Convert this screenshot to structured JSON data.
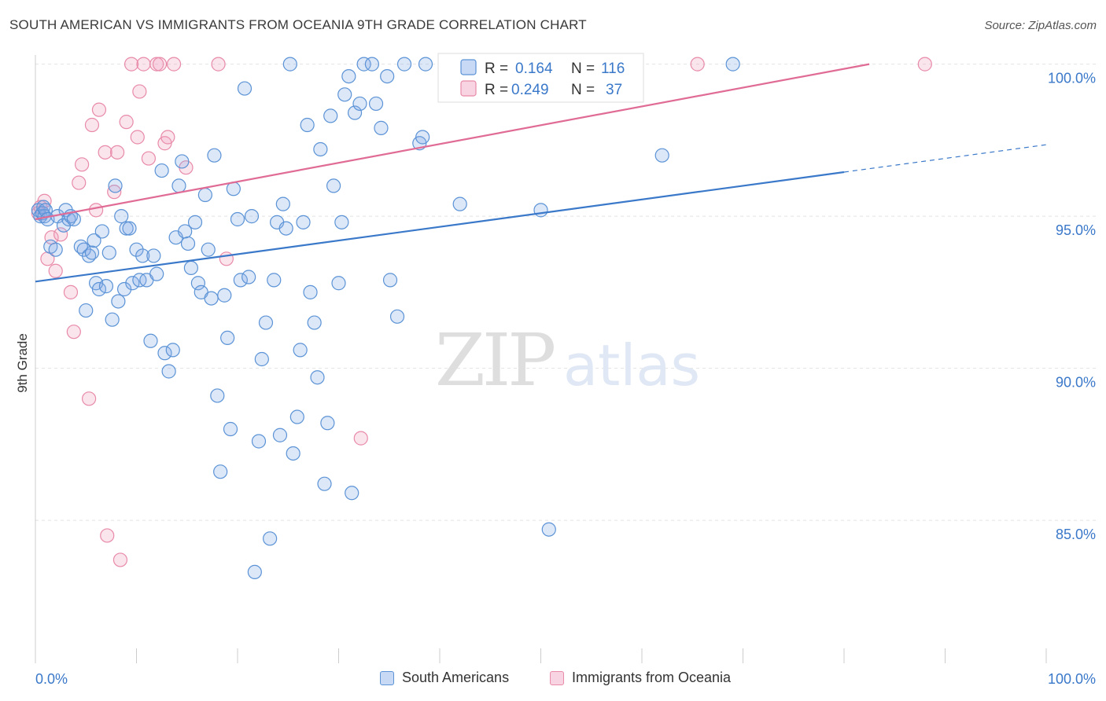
{
  "title": "SOUTH AMERICAN VS IMMIGRANTS FROM OCEANIA 9TH GRADE CORRELATION CHART",
  "source": "Source: ZipAtlas.com",
  "watermark": {
    "zip": "ZIP",
    "atlas": "atlas"
  },
  "colors": {
    "blue": "#5b93d6",
    "blue_fill": "rgba(130,170,230,0.28)",
    "blue_line": "#3a78c9",
    "pink": "#e88aa8",
    "pink_fill": "rgba(240,160,190,0.28)",
    "pink_line": "#e06b95",
    "axis_label": "#3a78c9",
    "grid": "#e2e2e2"
  },
  "stats": {
    "series1": {
      "r_label": "R = ",
      "r": "0.164",
      "n_label": "N = ",
      "n": "116"
    },
    "series2": {
      "r_label": "R = ",
      "r": "0.249",
      "n_label": "N = ",
      "n": "37"
    }
  },
  "chart_data": {
    "type": "scatter",
    "xlabel": "",
    "ylabel": "9th Grade",
    "xlim": [
      0,
      100
    ],
    "ylim": [
      80.3,
      100.3
    ],
    "x_tick_labels": [
      "0.0%",
      "100.0%"
    ],
    "y_ticks": [
      85,
      90,
      95,
      100
    ],
    "y_tick_labels": [
      "85.0%",
      "90.0%",
      "95.0%",
      "100.0%"
    ],
    "grid": true,
    "legend_position": "bottom",
    "series": [
      {
        "name": "South Americans",
        "color": "#5b93d6",
        "trend": {
          "x0": 0,
          "y0": 92.85,
          "x1": 80,
          "y1": 96.45,
          "dash_to": 100,
          "dash_y": 97.35
        },
        "points": [
          [
            0.3,
            95.2
          ],
          [
            0.5,
            95.0
          ],
          [
            0.7,
            95.1
          ],
          [
            0.8,
            95.3
          ],
          [
            0.9,
            95.0
          ],
          [
            1.0,
            95.2
          ],
          [
            1.2,
            94.9
          ],
          [
            1.5,
            94.0
          ],
          [
            2.0,
            93.9
          ],
          [
            2.2,
            95.0
          ],
          [
            2.8,
            94.7
          ],
          [
            3.0,
            95.2
          ],
          [
            3.3,
            94.9
          ],
          [
            3.5,
            95.0
          ],
          [
            3.8,
            94.9
          ],
          [
            4.5,
            94.0
          ],
          [
            4.8,
            93.9
          ],
          [
            5.0,
            91.9
          ],
          [
            5.3,
            93.7
          ],
          [
            5.6,
            93.8
          ],
          [
            5.8,
            94.2
          ],
          [
            6.0,
            92.8
          ],
          [
            6.3,
            92.6
          ],
          [
            6.6,
            94.5
          ],
          [
            7.0,
            92.7
          ],
          [
            7.3,
            93.8
          ],
          [
            7.6,
            91.6
          ],
          [
            7.9,
            96.0
          ],
          [
            8.2,
            92.2
          ],
          [
            8.5,
            95.0
          ],
          [
            8.8,
            92.6
          ],
          [
            9.0,
            94.6
          ],
          [
            9.3,
            94.6
          ],
          [
            9.6,
            92.8
          ],
          [
            10.0,
            93.9
          ],
          [
            10.3,
            92.9
          ],
          [
            10.6,
            93.7
          ],
          [
            11.0,
            92.9
          ],
          [
            11.4,
            90.9
          ],
          [
            11.7,
            93.7
          ],
          [
            12.0,
            93.1
          ],
          [
            12.5,
            96.5
          ],
          [
            12.8,
            90.5
          ],
          [
            13.2,
            89.9
          ],
          [
            13.6,
            90.6
          ],
          [
            13.9,
            94.3
          ],
          [
            14.2,
            96.0
          ],
          [
            14.5,
            96.8
          ],
          [
            14.8,
            94.5
          ],
          [
            15.1,
            94.1
          ],
          [
            15.4,
            93.3
          ],
          [
            15.8,
            94.8
          ],
          [
            16.1,
            92.8
          ],
          [
            16.4,
            92.5
          ],
          [
            16.8,
            95.7
          ],
          [
            17.1,
            93.9
          ],
          [
            17.4,
            92.3
          ],
          [
            17.7,
            97.0
          ],
          [
            18.0,
            89.1
          ],
          [
            18.3,
            86.6
          ],
          [
            18.7,
            92.4
          ],
          [
            19.0,
            91.0
          ],
          [
            19.3,
            88.0
          ],
          [
            19.6,
            95.9
          ],
          [
            20.0,
            94.9
          ],
          [
            20.3,
            92.9
          ],
          [
            20.7,
            99.2
          ],
          [
            21.1,
            93.0
          ],
          [
            21.4,
            95.0
          ],
          [
            21.7,
            83.3
          ],
          [
            22.1,
            87.6
          ],
          [
            22.4,
            90.3
          ],
          [
            22.8,
            91.5
          ],
          [
            23.2,
            84.4
          ],
          [
            23.6,
            92.9
          ],
          [
            23.9,
            94.8
          ],
          [
            24.2,
            87.8
          ],
          [
            24.5,
            95.4
          ],
          [
            24.8,
            94.6
          ],
          [
            25.2,
            100.0
          ],
          [
            25.5,
            87.2
          ],
          [
            25.9,
            88.4
          ],
          [
            26.2,
            90.6
          ],
          [
            26.5,
            94.8
          ],
          [
            26.9,
            98.0
          ],
          [
            27.2,
            92.5
          ],
          [
            27.6,
            91.5
          ],
          [
            27.9,
            89.7
          ],
          [
            28.2,
            97.2
          ],
          [
            28.6,
            86.2
          ],
          [
            28.9,
            88.2
          ],
          [
            29.2,
            98.3
          ],
          [
            29.5,
            96.0
          ],
          [
            30.0,
            92.8
          ],
          [
            30.3,
            94.8
          ],
          [
            30.6,
            99.0
          ],
          [
            31.0,
            99.6
          ],
          [
            31.3,
            85.9
          ],
          [
            31.6,
            98.4
          ],
          [
            32.1,
            98.7
          ],
          [
            32.5,
            100.0
          ],
          [
            33.3,
            100.0
          ],
          [
            33.7,
            98.7
          ],
          [
            34.2,
            97.9
          ],
          [
            34.8,
            99.6
          ],
          [
            35.1,
            92.9
          ],
          [
            35.8,
            91.7
          ],
          [
            36.5,
            100.0
          ],
          [
            38.0,
            97.4
          ],
          [
            38.3,
            97.6
          ],
          [
            42.0,
            95.4
          ],
          [
            50.0,
            95.2
          ],
          [
            50.8,
            84.7
          ],
          [
            62.0,
            97.0
          ],
          [
            69.0,
            100.0
          ],
          [
            38.6,
            100.0
          ]
        ]
      },
      {
        "name": "Immigrants from Oceania",
        "color": "#e88aa8",
        "trend": {
          "x0": 0,
          "y0": 94.9,
          "x1": 82.5,
          "y1": 100.0
        },
        "points": [
          [
            0.3,
            95.1
          ],
          [
            0.5,
            95.3
          ],
          [
            0.9,
            95.5
          ],
          [
            1.2,
            93.6
          ],
          [
            1.6,
            94.3
          ],
          [
            2.0,
            93.2
          ],
          [
            2.5,
            94.4
          ],
          [
            3.5,
            92.5
          ],
          [
            3.8,
            91.2
          ],
          [
            4.3,
            96.1
          ],
          [
            4.6,
            96.7
          ],
          [
            5.3,
            89.0
          ],
          [
            5.6,
            98.0
          ],
          [
            6.0,
            95.2
          ],
          [
            6.3,
            98.5
          ],
          [
            6.9,
            97.1
          ],
          [
            7.1,
            84.5
          ],
          [
            7.8,
            95.8
          ],
          [
            8.1,
            97.1
          ],
          [
            8.4,
            83.7
          ],
          [
            9.0,
            98.1
          ],
          [
            9.5,
            100.0
          ],
          [
            10.1,
            97.6
          ],
          [
            10.3,
            99.1
          ],
          [
            10.7,
            100.0
          ],
          [
            11.2,
            96.9
          ],
          [
            12.0,
            100.0
          ],
          [
            12.3,
            100.0
          ],
          [
            12.8,
            97.4
          ],
          [
            13.1,
            97.6
          ],
          [
            13.7,
            100.0
          ],
          [
            14.9,
            96.6
          ],
          [
            18.1,
            100.0
          ],
          [
            18.9,
            93.6
          ],
          [
            32.2,
            87.7
          ],
          [
            65.5,
            100.0
          ],
          [
            88.0,
            100.0
          ]
        ]
      }
    ]
  }
}
